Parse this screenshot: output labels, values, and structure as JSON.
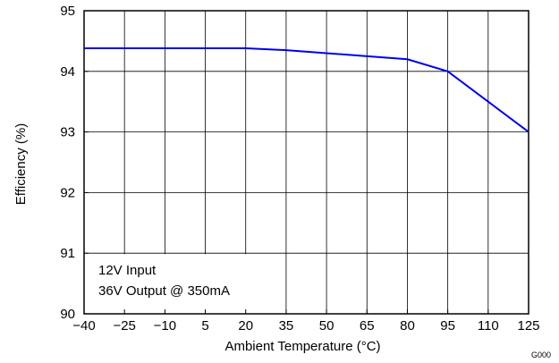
{
  "chart_data": {
    "type": "line",
    "xlabel": "Ambient Temperature (°C)",
    "ylabel": "Efficiency (%)",
    "xlim": [
      -40,
      125
    ],
    "ylim": [
      90,
      95
    ],
    "x_ticks": [
      -40,
      -25,
      -10,
      5,
      20,
      35,
      50,
      65,
      80,
      95,
      110,
      125
    ],
    "x_tick_labels": [
      "−40",
      "−25",
      "−10",
      "5",
      "20",
      "35",
      "50",
      "65",
      "80",
      "95",
      "110",
      "125"
    ],
    "y_ticks": [
      90,
      91,
      92,
      93,
      94,
      95
    ],
    "y_tick_labels": [
      "90",
      "91",
      "92",
      "93",
      "94",
      "95"
    ],
    "grid": true,
    "series": [
      {
        "color": "#0000ee",
        "x": [
          -40,
          -25,
          -10,
          5,
          20,
          35,
          50,
          65,
          80,
          95,
          110,
          125
        ],
        "y": [
          94.38,
          94.38,
          94.38,
          94.38,
          94.38,
          94.35,
          94.3,
          94.25,
          94.2,
          94.0,
          93.5,
          93.0
        ]
      }
    ],
    "annotations": [
      "12V Input",
      "36V Output @ 350mA"
    ],
    "figure_id": "G000"
  }
}
